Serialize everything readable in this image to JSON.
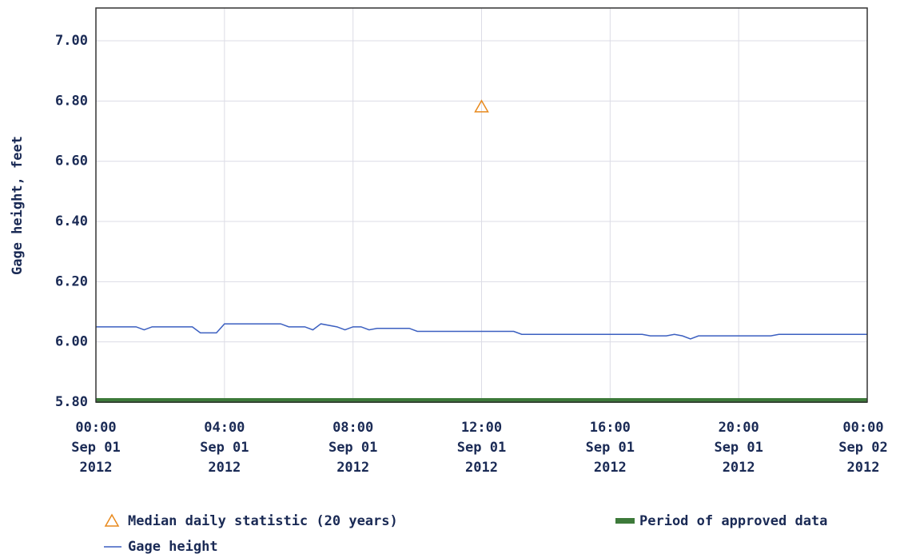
{
  "chart_data": {
    "type": "line",
    "ylabel": "Gage height, feet",
    "ylim": [
      5.8,
      7.109
    ],
    "yticks": [
      {
        "value": 5.8,
        "label": "5.80"
      },
      {
        "value": 6.0,
        "label": "6.00"
      },
      {
        "value": 6.2,
        "label": "6.20"
      },
      {
        "value": 6.4,
        "label": "6.40"
      },
      {
        "value": 6.6,
        "label": "6.60"
      },
      {
        "value": 6.8,
        "label": "6.80"
      },
      {
        "value": 7.0,
        "label": "7.00"
      }
    ],
    "xlim": [
      "2012-09-01T00:00",
      "2012-09-02T00:00"
    ],
    "xticks": [
      {
        "value": "2012-09-01T00:00",
        "label": "00:00\nSep 01\n2012"
      },
      {
        "value": "2012-09-01T04:00",
        "label": "04:00\nSep 01\n2012"
      },
      {
        "value": "2012-09-01T08:00",
        "label": "08:00\nSep 01\n2012"
      },
      {
        "value": "2012-09-01T12:00",
        "label": "12:00\nSep 01\n2012"
      },
      {
        "value": "2012-09-01T16:00",
        "label": "16:00\nSep 01\n2012"
      },
      {
        "value": "2012-09-01T20:00",
        "label": "20:00\nSep 01\n2012"
      },
      {
        "value": "2012-09-02T00:00",
        "label": "00:00\nSep 02\n2012"
      }
    ],
    "grid": true,
    "series": [
      {
        "name": "Median daily statistic (20 years)",
        "color": "#e8891c",
        "marker": "triangle",
        "x": [
          "2012-09-01T12:00"
        ],
        "values": [
          6.78
        ]
      },
      {
        "name": "Period of approved data",
        "color": "#3d7a3a",
        "marker": "band",
        "x": [
          "2012-09-01T00:00",
          "2012-09-02T00:00"
        ],
        "values": [
          5.8,
          5.8
        ]
      },
      {
        "name": "Gage height",
        "color": "#3b5fc0",
        "marker": "line",
        "x": [
          "2012-09-01T00:00",
          "2012-09-01T01:15",
          "2012-09-01T01:30",
          "2012-09-01T01:45",
          "2012-09-01T03:00",
          "2012-09-01T03:15",
          "2012-09-01T03:45",
          "2012-09-01T04:00",
          "2012-09-01T05:45",
          "2012-09-01T06:00",
          "2012-09-01T06:30",
          "2012-09-01T06:45",
          "2012-09-01T07:00",
          "2012-09-01T07:30",
          "2012-09-01T07:45",
          "2012-09-01T08:00",
          "2012-09-01T08:15",
          "2012-09-01T08:30",
          "2012-09-01T08:45",
          "2012-09-01T09:45",
          "2012-09-01T10:00",
          "2012-09-01T13:00",
          "2012-09-01T13:15",
          "2012-09-01T17:00",
          "2012-09-01T17:15",
          "2012-09-01T17:45",
          "2012-09-01T18:00",
          "2012-09-01T18:15",
          "2012-09-01T18:30",
          "2012-09-01T18:45",
          "2012-09-01T21:00",
          "2012-09-01T21:15",
          "2012-09-02T00:00"
        ],
        "values": [
          6.05,
          6.05,
          6.04,
          6.05,
          6.05,
          6.03,
          6.03,
          6.06,
          6.06,
          6.05,
          6.05,
          6.04,
          6.06,
          6.05,
          6.04,
          6.05,
          6.05,
          6.04,
          6.045,
          6.045,
          6.035,
          6.035,
          6.025,
          6.025,
          6.02,
          6.02,
          6.025,
          6.02,
          6.01,
          6.02,
          6.02,
          6.025,
          6.025
        ]
      }
    ]
  }
}
